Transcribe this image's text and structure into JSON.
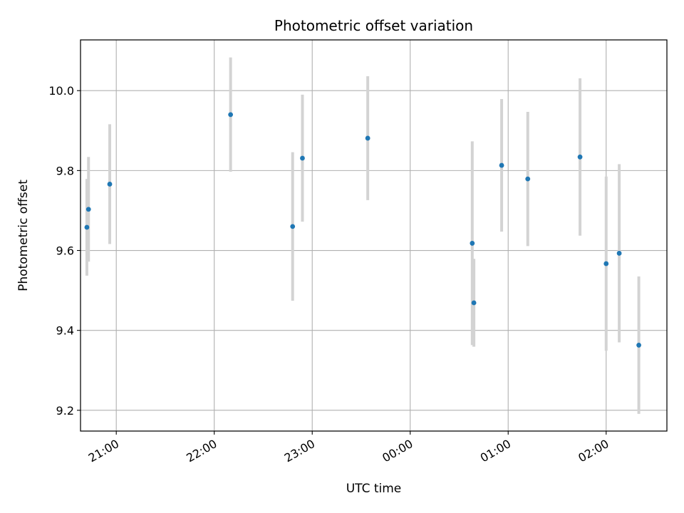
{
  "chart_data": {
    "type": "scatter",
    "title": "Photometric offset variation",
    "xlabel": "UTC time",
    "ylabel": "Photometric offset",
    "x_tick_labels": [
      "21:00",
      "22:00",
      "23:00",
      "00:00",
      "01:00",
      "02:00"
    ],
    "x_ticks_hours": [
      21,
      22,
      23,
      24,
      25,
      26
    ],
    "xlim_hours": [
      20.635,
      26.62
    ],
    "y_ticks": [
      9.2,
      9.4,
      9.6,
      9.8,
      10.0
    ],
    "y_tick_labels": [
      "9.2",
      "9.4",
      "9.6",
      "9.8",
      "10.0"
    ],
    "ylim": [
      9.148,
      10.127
    ],
    "grid": true,
    "series": [
      {
        "marker_color": "#1f77b4",
        "errorbar_color": "#d3d3d3",
        "points": [
          {
            "time": "20:42",
            "y": 9.658,
            "err": 0.121
          },
          {
            "time": "20:43",
            "y": 9.703,
            "err": 0.131
          },
          {
            "time": "20:56",
            "y": 9.766,
            "err": 0.15
          },
          {
            "time": "22:10",
            "y": 9.94,
            "err": 0.143
          },
          {
            "time": "22:48",
            "y": 9.66,
            "err": 0.186
          },
          {
            "time": "22:54",
            "y": 9.831,
            "err": 0.159
          },
          {
            "time": "23:34",
            "y": 9.881,
            "err": 0.155
          },
          {
            "time": "00:38",
            "y": 9.618,
            "err": 0.255
          },
          {
            "time": "00:39",
            "y": 9.469,
            "err": 0.11
          },
          {
            "time": "00:56",
            "y": 9.813,
            "err": 0.166
          },
          {
            "time": "01:12",
            "y": 9.779,
            "err": 0.168
          },
          {
            "time": "01:44",
            "y": 9.834,
            "err": 0.197
          },
          {
            "time": "02:00",
            "y": 9.567,
            "err": 0.218
          },
          {
            "time": "02:08",
            "y": 9.593,
            "err": 0.223
          },
          {
            "time": "02:20",
            "y": 9.363,
            "err": 0.172
          }
        ]
      }
    ]
  }
}
